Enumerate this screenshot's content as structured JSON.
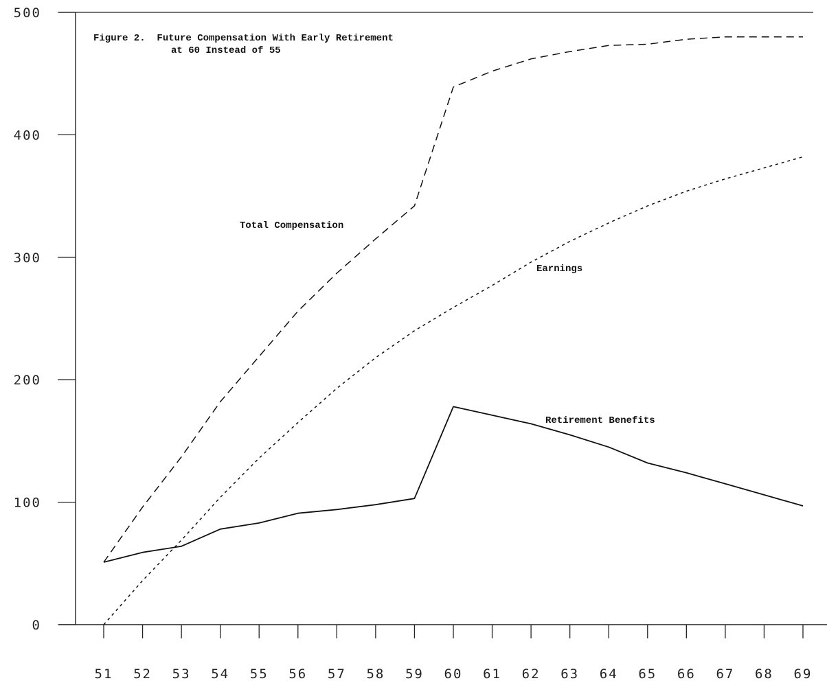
{
  "chart_data": {
    "type": "line",
    "title_line1": "Figure 2.  Future Compensation With Early Retirement",
    "title_line2": "at 60 Instead of 55",
    "xlabel": "",
    "ylabel": "",
    "x": [
      51,
      52,
      53,
      54,
      55,
      56,
      57,
      58,
      59,
      60,
      61,
      62,
      63,
      64,
      65,
      66,
      67,
      68,
      69
    ],
    "x_tick_labels": [
      "51",
      "52",
      "53",
      "54",
      "55",
      "56",
      "57",
      "58",
      "59",
      "60",
      "61",
      "62",
      "63",
      "64",
      "65",
      "66",
      "67",
      "68",
      "69"
    ],
    "y_ticks": [
      0,
      100,
      200,
      300,
      400,
      500
    ],
    "y_tick_labels": [
      "0",
      "100",
      "200",
      "300",
      "400",
      "500"
    ],
    "ylim": [
      0,
      500
    ],
    "grid": false,
    "legend": "none",
    "series": [
      {
        "name": "Total Compensation",
        "style": "long-dash",
        "color": "#111111",
        "values": [
          51,
          96,
          137,
          182,
          219,
          256,
          287,
          315,
          342,
          439,
          452,
          462,
          468,
          473,
          474,
          478,
          480,
          480,
          480
        ]
      },
      {
        "name": "Earnings",
        "style": "short-dash",
        "color": "#111111",
        "values": [
          0,
          36,
          69,
          104,
          136,
          165,
          193,
          218,
          240,
          259,
          277,
          296,
          313,
          328,
          342,
          354,
          364,
          373,
          382
        ]
      },
      {
        "name": "Retirement Benefits",
        "style": "solid",
        "color": "#111111",
        "values": [
          51,
          59,
          64,
          78,
          83,
          91,
          94,
          98,
          103,
          178,
          171,
          164,
          155,
          145,
          132,
          124,
          115,
          106,
          97
        ]
      }
    ]
  }
}
